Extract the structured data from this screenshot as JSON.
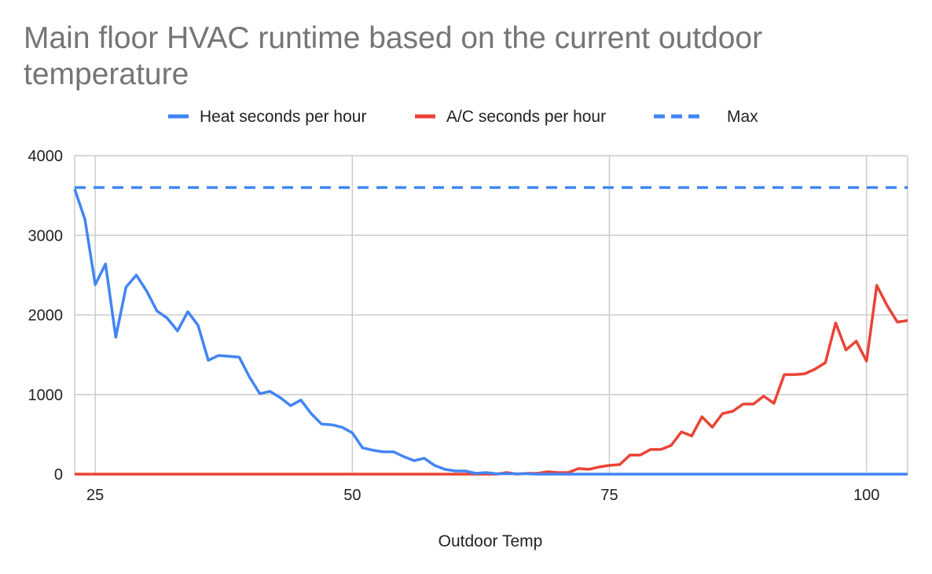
{
  "chart_data": {
    "type": "line",
    "title": "Main floor HVAC runtime based on the current outdoor temperature",
    "xlabel": "Outdoor Temp",
    "ylabel": "",
    "xlim": [
      23,
      104
    ],
    "ylim": [
      0,
      4000
    ],
    "x_ticks": [
      25,
      50,
      75,
      100
    ],
    "y_ticks": [
      0,
      1000,
      2000,
      3000,
      4000
    ],
    "grid": true,
    "legend_position": "top",
    "x": [
      23,
      24,
      25,
      26,
      27,
      28,
      29,
      30,
      31,
      32,
      33,
      34,
      35,
      36,
      37,
      38,
      39,
      40,
      41,
      42,
      43,
      44,
      45,
      46,
      47,
      48,
      49,
      50,
      51,
      52,
      53,
      54,
      55,
      56,
      57,
      58,
      59,
      60,
      61,
      62,
      63,
      64,
      65,
      66,
      67,
      68,
      69,
      70,
      71,
      72,
      73,
      74,
      75,
      76,
      77,
      78,
      79,
      80,
      81,
      82,
      83,
      84,
      85,
      86,
      87,
      88,
      89,
      90,
      91,
      92,
      93,
      94,
      95,
      96,
      97,
      98,
      99,
      100,
      101,
      102,
      103,
      104
    ],
    "series": [
      {
        "name": "Heat seconds per hour",
        "color": "#4285f4",
        "dashed": false,
        "values": [
          3580,
          3200,
          2380,
          2640,
          1720,
          2350,
          2500,
          2300,
          2050,
          1960,
          1800,
          2040,
          1870,
          1430,
          1490,
          1480,
          1470,
          1220,
          1010,
          1040,
          960,
          860,
          930,
          760,
          630,
          620,
          590,
          520,
          330,
          300,
          280,
          280,
          220,
          170,
          200,
          110,
          60,
          40,
          40,
          10,
          20,
          5,
          5,
          5,
          5,
          0,
          0,
          0,
          0,
          0,
          0,
          0,
          0,
          0,
          0,
          0,
          0,
          0,
          0,
          0,
          0,
          0,
          0,
          0,
          0,
          0,
          0,
          0,
          0,
          0,
          0,
          0,
          0,
          0,
          0,
          0,
          0,
          0,
          0,
          0,
          0,
          0
        ]
      },
      {
        "name": "A/C seconds per hour",
        "color": "#ea4335",
        "dashed": false,
        "values": [
          0,
          0,
          0,
          0,
          0,
          0,
          0,
          0,
          0,
          0,
          0,
          0,
          0,
          0,
          0,
          0,
          0,
          0,
          0,
          0,
          0,
          0,
          0,
          0,
          0,
          0,
          0,
          0,
          0,
          0,
          0,
          0,
          0,
          0,
          0,
          0,
          0,
          0,
          0,
          0,
          0,
          0,
          20,
          0,
          10,
          10,
          30,
          20,
          20,
          70,
          60,
          90,
          110,
          120,
          240,
          240,
          310,
          310,
          360,
          530,
          480,
          720,
          590,
          760,
          790,
          880,
          880,
          980,
          890,
          1250,
          1250,
          1260,
          1320,
          1400,
          1900,
          1560,
          1670,
          1420,
          2370,
          2120,
          1910,
          1930
        ]
      },
      {
        "name": "Max",
        "color": "#4285f4",
        "dashed": true,
        "values": [
          3600,
          3600,
          3600,
          3600,
          3600,
          3600,
          3600,
          3600,
          3600,
          3600,
          3600,
          3600,
          3600,
          3600,
          3600,
          3600,
          3600,
          3600,
          3600,
          3600,
          3600,
          3600,
          3600,
          3600,
          3600,
          3600,
          3600,
          3600,
          3600,
          3600,
          3600,
          3600,
          3600,
          3600,
          3600,
          3600,
          3600,
          3600,
          3600,
          3600,
          3600,
          3600,
          3600,
          3600,
          3600,
          3600,
          3600,
          3600,
          3600,
          3600,
          3600,
          3600,
          3600,
          3600,
          3600,
          3600,
          3600,
          3600,
          3600,
          3600,
          3600,
          3600,
          3600,
          3600,
          3600,
          3600,
          3600,
          3600,
          3600,
          3600,
          3600,
          3600,
          3600,
          3600,
          3600,
          3600,
          3600,
          3600,
          3600,
          3600,
          3600,
          3600
        ]
      }
    ]
  }
}
